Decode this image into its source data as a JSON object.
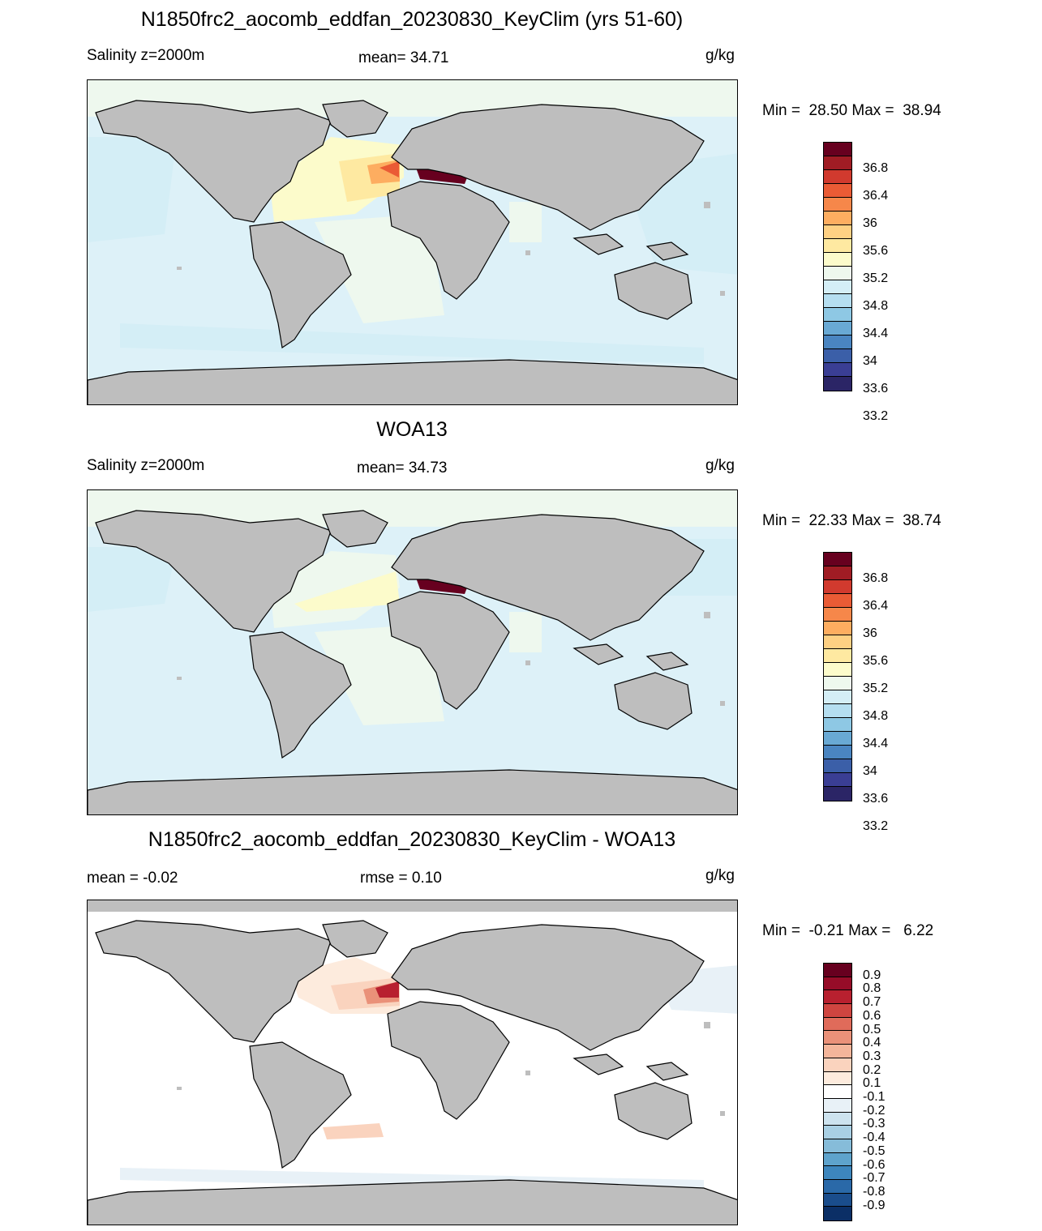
{
  "panels": [
    {
      "title": "N1850frc2_aocomb_eddfan_20230830_KeyClim (yrs 51-60)",
      "left_label": "Salinity z=2000m",
      "center_label": "mean=  34.71",
      "units": "g/kg",
      "min_label": "Min =  28.50 Max =  38.94"
    },
    {
      "title": "WOA13",
      "left_label": "Salinity z=2000m",
      "center_label": "mean=  34.73",
      "units": "g/kg",
      "min_label": "Min =  22.33 Max =  38.74"
    },
    {
      "title": "N1850frc2_aocomb_eddfan_20230830_KeyClim - WOA13",
      "left_label": "mean =  -0.02",
      "center_label": "rmse =   0.10",
      "units": "g/kg",
      "min_label": "Min =  -0.21 Max =   6.22"
    }
  ],
  "colorbars": {
    "salinity": {
      "labels": [
        "36.8",
        "36.4",
        "36",
        "35.6",
        "35.2",
        "34.8",
        "34.4",
        "34",
        "33.6",
        "33.2"
      ],
      "colors_top_to_bottom": [
        "#67001f",
        "#a01c24",
        "#d13a2e",
        "#ea5b35",
        "#f6874a",
        "#fdad60",
        "#fed083",
        "#fee9a1",
        "#fcfbcb",
        "#eef8ee",
        "#d4eef6",
        "#b5def0",
        "#8ec8e4",
        "#69a9d4",
        "#4a85c1",
        "#3b5fa8",
        "#3a3e94",
        "#2b2566"
      ]
    },
    "difference": {
      "labels": [
        "0.9",
        "0.8",
        "0.7",
        "0.6",
        "0.5",
        "0.4",
        "0.3",
        "0.2",
        "0.1",
        "-0.1",
        "-0.2",
        "-0.3",
        "-0.4",
        "-0.5",
        "-0.6",
        "-0.7",
        "-0.8",
        "-0.9"
      ],
      "colors_top_to_bottom": [
        "#67001f",
        "#960c28",
        "#b8202f",
        "#cf4540",
        "#e06b5a",
        "#ea9179",
        "#f4b59a",
        "#fad3be",
        "#fdebdd",
        "#ffffff",
        "#e8f1f7",
        "#cde3ef",
        "#a9d0e4",
        "#86bcd9",
        "#5ea3cc",
        "#3d86bd",
        "#2a69a8",
        "#1a4d8c",
        "#0b2f66"
      ]
    }
  },
  "map_colors": {
    "land": "#bebebe",
    "panel1_ocean_base": "#ddf1f8",
    "panel2_ocean_base": "#ddf1f8",
    "panel3_ocean_base": "#ffffff",
    "salty_atlantic": "#fcfbcb",
    "mediterranean": "#67001f",
    "diff_positive": "#fad3be",
    "diff_strong": "#b8202f",
    "diff_negative": "#e8f1f7"
  }
}
